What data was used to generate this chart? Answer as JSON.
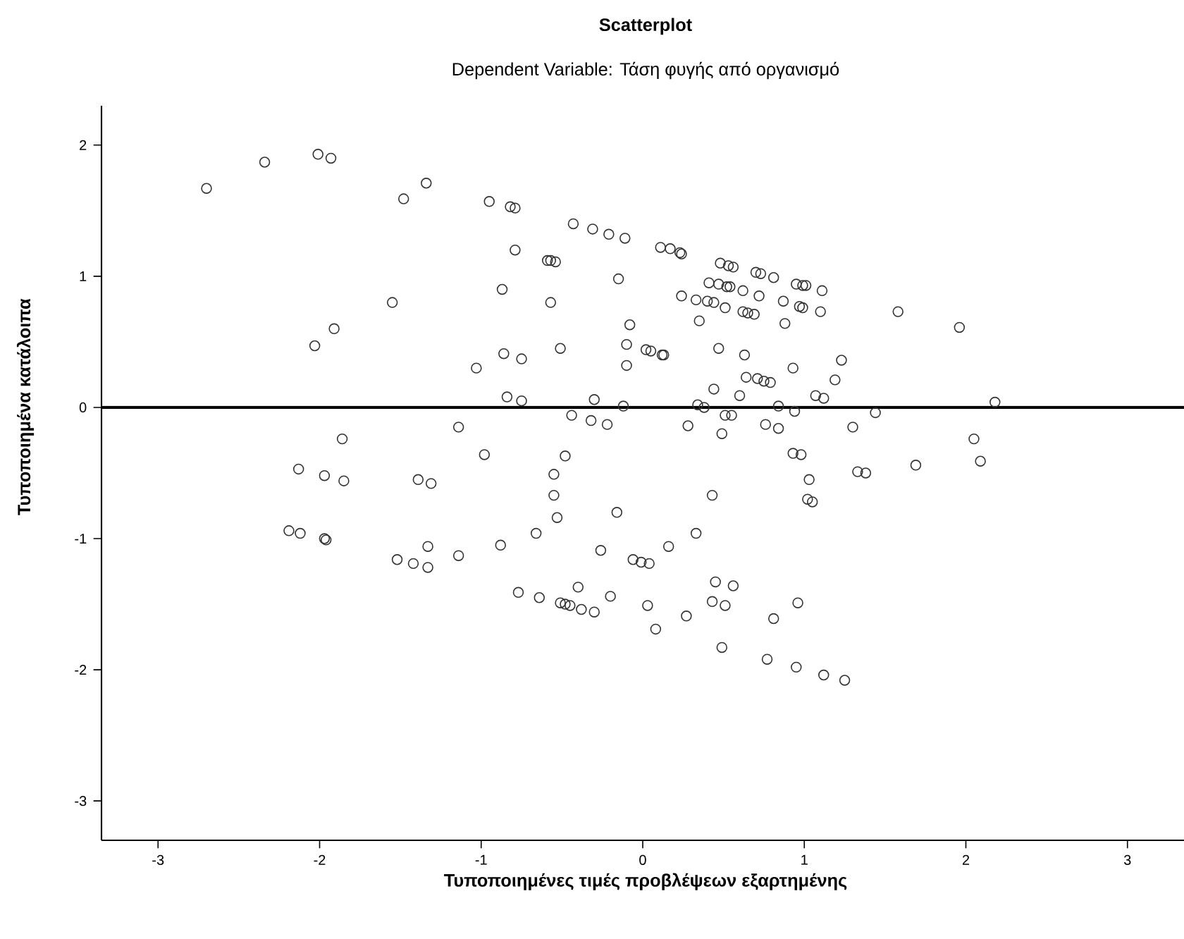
{
  "chart_data": {
    "type": "scatter",
    "title": "Scatterplot",
    "subtitle": "Dependent Variable: Τάση φυγής από οργανισμό",
    "xlabel": "Τυποποιημένες τιμές προβλέψεων εξαρτημένης",
    "ylabel": "Τυποποιημένα κατάλοιπα",
    "xlim": [
      -3.35,
      3.35
    ],
    "ylim": [
      -3.3,
      2.3
    ],
    "xticks": [
      -3,
      -2,
      -1,
      0,
      1,
      2,
      3
    ],
    "yticks": [
      -3,
      -2,
      -1,
      0,
      1,
      2
    ],
    "grid": false,
    "legend": false,
    "marker": "circle",
    "ref_lines": [
      {
        "axis": "y",
        "value": 0,
        "color": "#000000"
      }
    ],
    "series": [
      {
        "color": "#333333",
        "x": [
          -2.7,
          -2.34,
          -2.01,
          -1.93,
          -1.48,
          -1.34,
          -1.55,
          -1.91,
          -2.03,
          -0.95,
          -0.82,
          -0.79,
          -0.43,
          -0.31,
          -0.21,
          -0.11,
          -0.79,
          -0.59,
          -0.57,
          -0.54,
          0.11,
          0.17,
          0.23,
          0.24,
          0.48,
          0.53,
          0.56,
          0.7,
          0.73,
          0.81,
          0.95,
          0.99,
          1.01,
          1.11,
          0.99,
          1.1,
          1.58,
          1.96,
          1.23,
          1.19,
          1.07,
          1.12,
          2.18,
          1.44,
          -0.87,
          -0.57,
          -0.15,
          0.41,
          0.47,
          0.52,
          0.54,
          0.62,
          0.72,
          0.87,
          0.97,
          0.24,
          0.33,
          0.4,
          0.44,
          0.51,
          0.62,
          0.65,
          0.69,
          0.88,
          0.35,
          -0.08,
          -0.86,
          -0.75,
          -1.03,
          -0.51,
          -0.1,
          -0.1,
          0.02,
          0.05,
          0.12,
          0.13,
          0.47,
          0.63,
          0.93,
          0.64,
          0.71,
          0.75,
          0.79,
          0.44,
          0.6,
          -0.84,
          -0.75,
          -0.3,
          -0.12,
          0.34,
          0.38,
          0.84,
          0.94,
          -1.14,
          -1.86,
          -2.13,
          -1.97,
          -1.85,
          -1.39,
          -1.31,
          -2.19,
          -2.12,
          -1.97,
          -1.96,
          -1.52,
          -1.42,
          -1.33,
          -1.33,
          -1.14,
          -0.98,
          -0.44,
          -0.32,
          -0.22,
          0.28,
          0.49,
          0.51,
          0.55,
          0.76,
          0.84,
          -0.48,
          -0.55,
          -0.55,
          -0.53,
          -0.16,
          -0.66,
          -0.88,
          -0.26,
          -0.06,
          -0.01,
          0.04,
          0.16,
          0.33,
          0.43,
          0.93,
          0.98,
          1.03,
          1.02,
          -0.77,
          -0.64,
          -0.51,
          -0.48,
          -0.45,
          -0.4,
          -0.38,
          -0.3,
          -0.2,
          0.03,
          0.08,
          0.27,
          0.45,
          0.56,
          0.43,
          0.51,
          0.49,
          0.81,
          0.96,
          0.77,
          0.95,
          1.3,
          2.05,
          2.09,
          1.69,
          1.33,
          1.38,
          1.05,
          1.12,
          1.25
        ],
        "values": [
          1.67,
          1.87,
          1.93,
          1.9,
          1.59,
          1.71,
          0.8,
          0.6,
          0.47,
          1.57,
          1.53,
          1.52,
          1.4,
          1.36,
          1.32,
          1.29,
          1.2,
          1.12,
          1.12,
          1.11,
          1.22,
          1.21,
          1.18,
          1.17,
          1.1,
          1.08,
          1.07,
          1.03,
          1.02,
          0.99,
          0.94,
          0.93,
          0.93,
          0.89,
          0.76,
          0.73,
          0.73,
          0.61,
          0.36,
          0.21,
          0.09,
          0.07,
          0.04,
          -0.04,
          0.9,
          0.8,
          0.98,
          0.95,
          0.94,
          0.92,
          0.92,
          0.89,
          0.85,
          0.81,
          0.77,
          0.85,
          0.82,
          0.81,
          0.8,
          0.76,
          0.73,
          0.72,
          0.71,
          0.64,
          0.66,
          0.63,
          0.41,
          0.37,
          0.3,
          0.45,
          0.48,
          0.32,
          0.44,
          0.43,
          0.4,
          0.4,
          0.45,
          0.4,
          0.3,
          0.23,
          0.22,
          0.2,
          0.19,
          0.14,
          0.09,
          0.08,
          0.05,
          0.06,
          0.01,
          0.02,
          0.0,
          0.01,
          -0.03,
          -0.15,
          -0.24,
          -0.47,
          -0.52,
          -0.56,
          -0.55,
          -0.58,
          -0.94,
          -0.96,
          -1.0,
          -1.01,
          -1.16,
          -1.19,
          -1.06,
          -1.22,
          -1.13,
          -0.36,
          -0.06,
          -0.1,
          -0.13,
          -0.14,
          -0.2,
          -0.06,
          -0.06,
          -0.13,
          -0.16,
          -0.37,
          -0.51,
          -0.67,
          -0.84,
          -0.8,
          -0.96,
          -1.05,
          -1.09,
          -1.16,
          -1.18,
          -1.19,
          -1.06,
          -0.96,
          -0.67,
          -0.35,
          -0.36,
          -0.55,
          -0.7,
          -1.41,
          -1.45,
          -1.49,
          -1.5,
          -1.51,
          -1.37,
          -1.54,
          -1.56,
          -1.44,
          -1.51,
          -1.69,
          -1.59,
          -1.33,
          -1.36,
          -1.48,
          -1.51,
          -1.83,
          -1.61,
          -1.49,
          -1.92,
          -1.98,
          -0.15,
          -0.24,
          -0.41,
          -0.44,
          -0.49,
          -0.5,
          -0.72,
          -2.04,
          -2.08
        ]
      }
    ]
  }
}
